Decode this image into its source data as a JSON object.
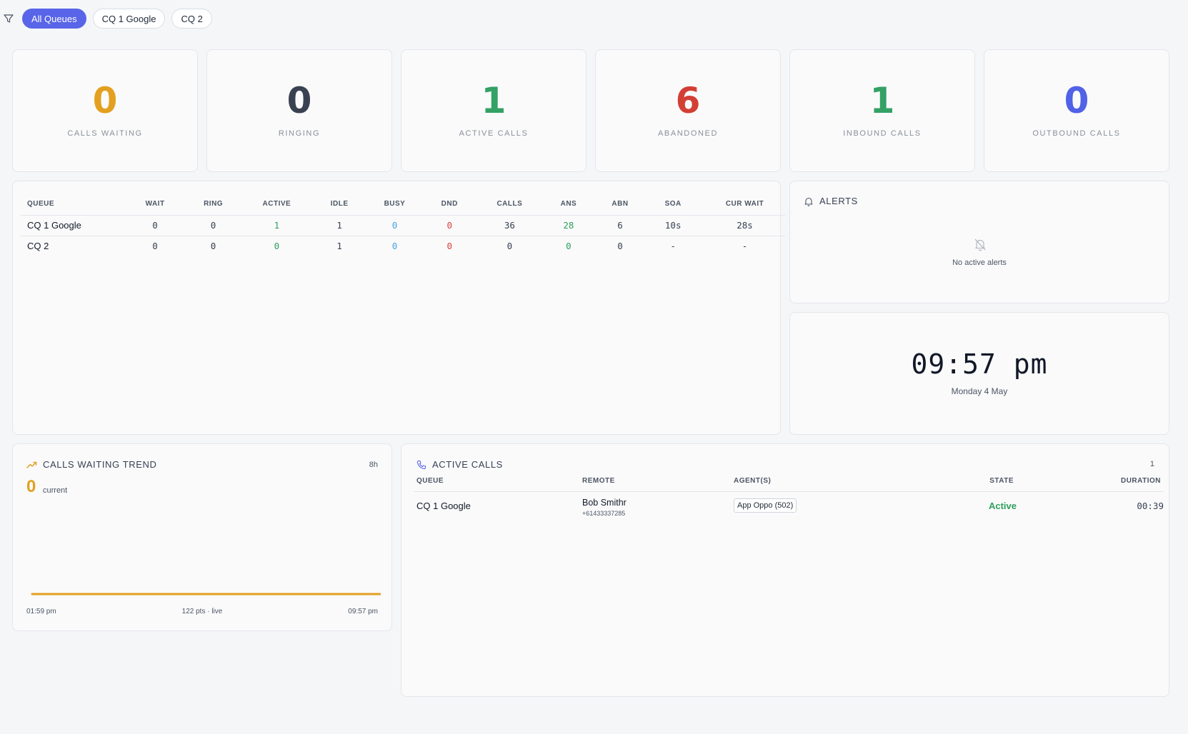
{
  "filters": {
    "items": [
      {
        "label": "All Queues",
        "active": true
      },
      {
        "label": "CQ 1 Google",
        "active": false
      },
      {
        "label": "CQ 2",
        "active": false
      }
    ]
  },
  "stats": [
    {
      "value": "0",
      "label": "CALLS WAITING",
      "color": "#e3a020"
    },
    {
      "value": "0",
      "label": "RINGING",
      "color": "#3a4150"
    },
    {
      "value": "1",
      "label": "ACTIVE CALLS",
      "color": "#34a165"
    },
    {
      "value": "6",
      "label": "ABANDONED",
      "color": "#d33f35"
    },
    {
      "value": "1",
      "label": "INBOUND CALLS",
      "color": "#34a165"
    },
    {
      "value": "0",
      "label": "OUTBOUND CALLS",
      "color": "#5162e6"
    }
  ],
  "queue_table": {
    "headers": [
      "QUEUE",
      "WAIT",
      "RING",
      "ACTIVE",
      "IDLE",
      "BUSY",
      "DND",
      "CALLS",
      "ANS",
      "ABN",
      "SOA",
      "CUR WAIT"
    ],
    "rows": [
      [
        "CQ 1 Google",
        "0",
        "0",
        "1",
        "1",
        "0",
        "0",
        "36",
        "28",
        "6",
        "10s",
        "28s"
      ],
      [
        "CQ 2",
        "0",
        "0",
        "0",
        "1",
        "0",
        "0",
        "0",
        "0",
        "0",
        "-",
        "-"
      ]
    ]
  },
  "alerts": {
    "title": "ALERTS",
    "empty_text": "No active alerts"
  },
  "clock": {
    "time": "09:57 pm",
    "date": "Monday 4 May"
  },
  "trend": {
    "title": "CALLS WAITING TREND",
    "range": "8h",
    "current_value": "0",
    "current_label": "current",
    "start_label": "01:59 pm",
    "mid_label": "122 pts · live",
    "end_label": "09:57 pm",
    "line_color": "#e3a020"
  },
  "active_calls": {
    "title": "ACTIVE CALLS",
    "count": "1",
    "headers": {
      "queue": "QUEUE",
      "remote": "REMOTE",
      "agents": "AGENT(S)",
      "state": "STATE",
      "duration": "DURATION"
    },
    "rows": [
      {
        "queue": "CQ 1 Google",
        "remote_name": "Bob Smithr",
        "remote_number": "+61433337285",
        "agent": "App Oppo (502)",
        "state": "Active",
        "duration": "00:39"
      }
    ]
  }
}
